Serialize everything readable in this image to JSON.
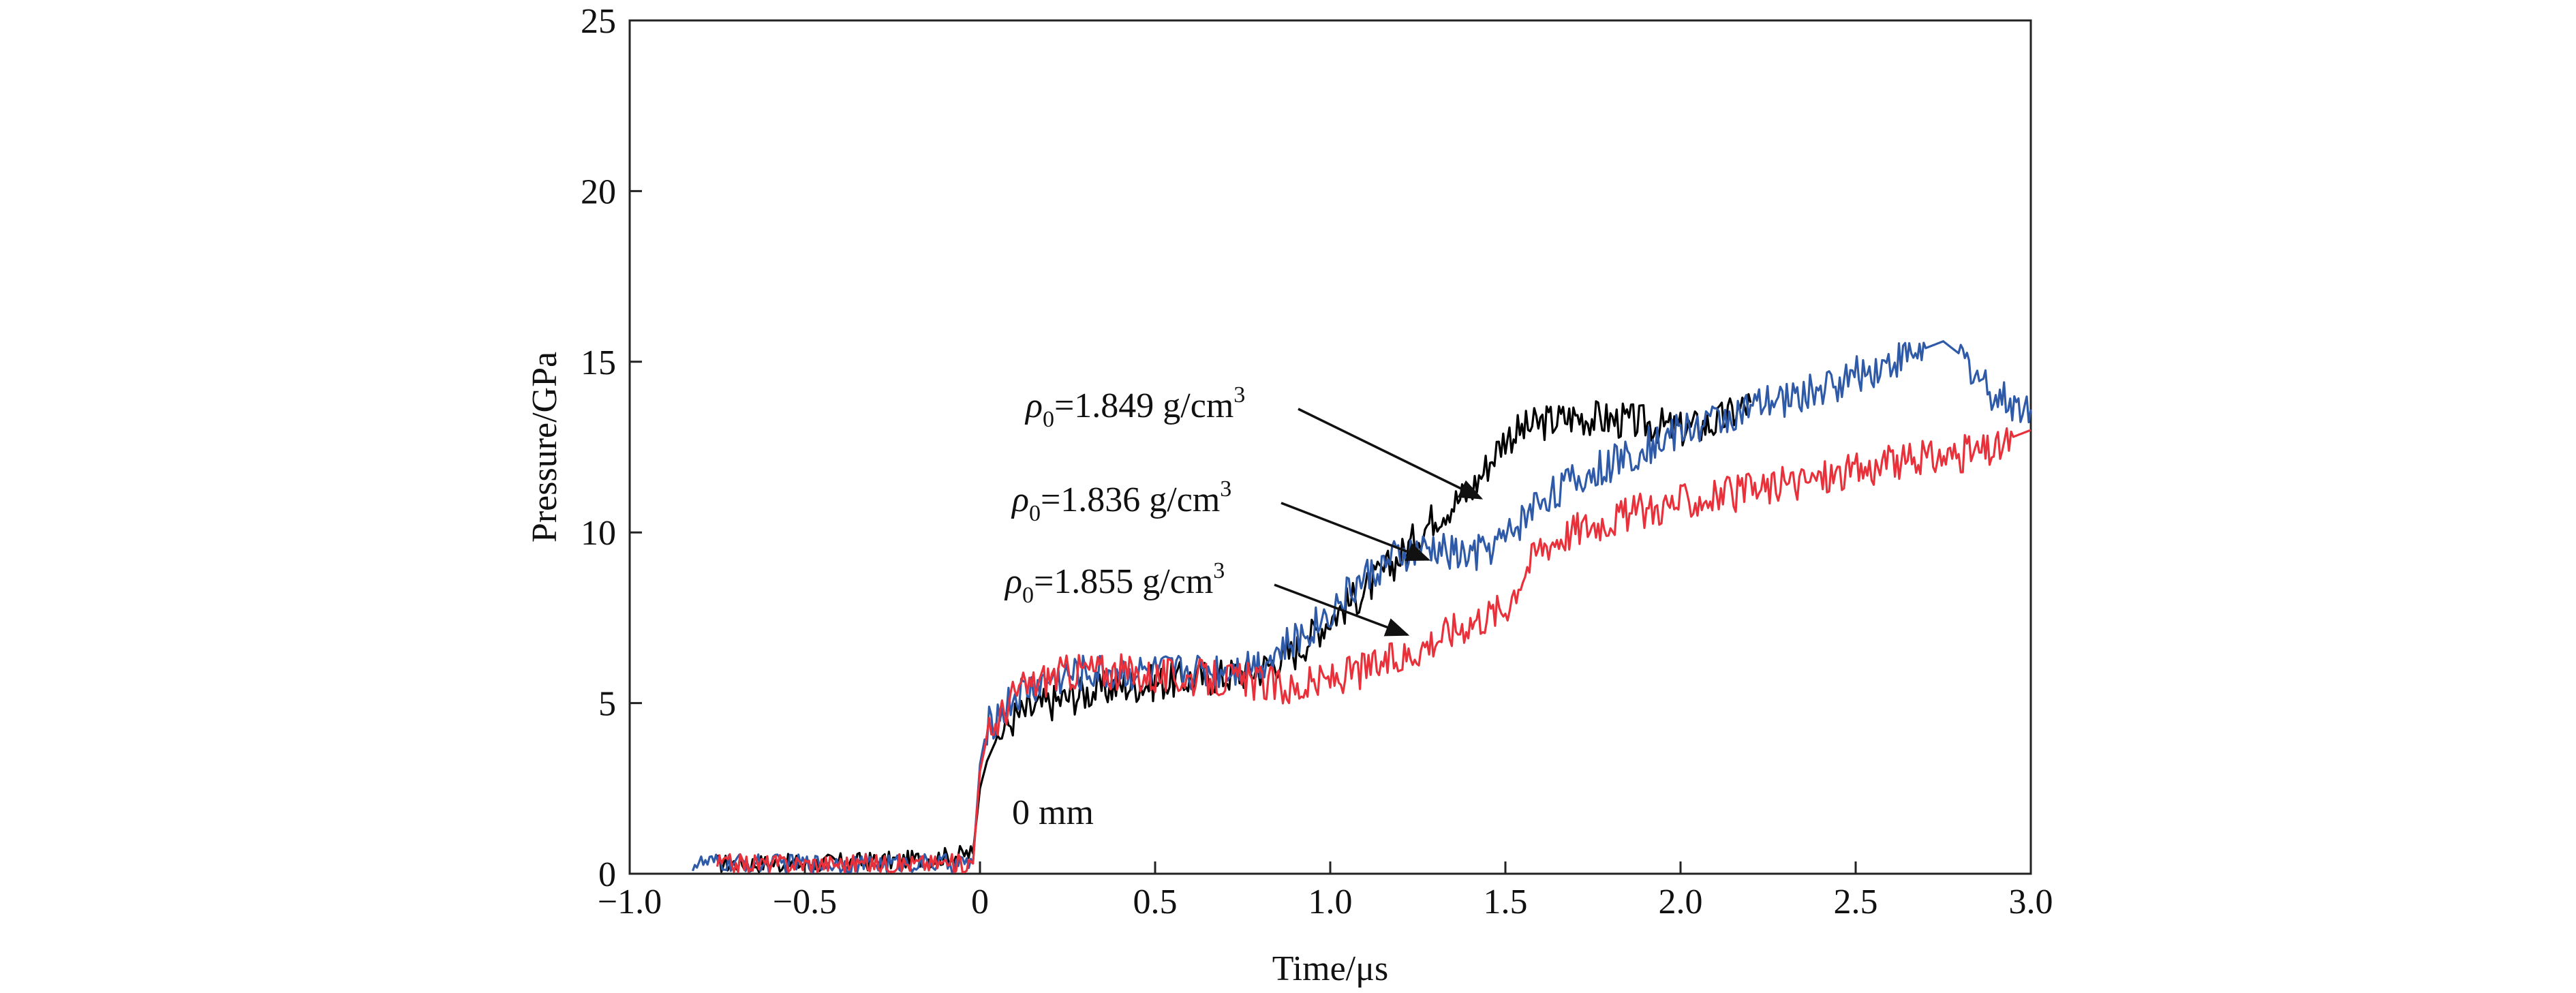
{
  "chart_data": {
    "type": "line",
    "title": "",
    "xlabel": "Time/μs",
    "ylabel": "Pressure/GPa",
    "xlim": [
      -1.0,
      3.0
    ],
    "ylim": [
      0,
      25
    ],
    "xticks": [
      -1.0,
      -0.5,
      0,
      0.5,
      1.0,
      1.5,
      2.0,
      2.5,
      3.0
    ],
    "xtick_labels": [
      "−1.0",
      "−0.5",
      "0",
      "0.5",
      "1.0",
      "1.5",
      "2.0",
      "2.5",
      "3.0"
    ],
    "yticks": [
      0,
      5,
      10,
      15,
      20,
      25
    ],
    "ytick_labels": [
      "0",
      "5",
      "10",
      "15",
      "20",
      "25"
    ],
    "grid": false,
    "legend": "none",
    "position_label": "0 mm",
    "series": [
      {
        "key": "rho_1849",
        "color": "#000000",
        "x": [
          -0.75,
          -0.5,
          -0.2,
          -0.1,
          -0.02,
          0.0,
          0.02,
          0.05,
          0.1,
          0.2,
          0.3,
          0.4,
          0.5,
          0.6,
          0.7,
          0.8,
          0.9,
          1.0,
          1.1,
          1.2,
          1.3,
          1.4,
          1.45,
          1.5,
          1.6,
          1.7,
          1.8,
          1.9,
          2.0,
          2.1,
          2.2
        ],
        "y": [
          0.3,
          0.3,
          0.4,
          0.5,
          0.6,
          2.5,
          3.3,
          4.0,
          4.6,
          5.0,
          5.3,
          5.5,
          5.6,
          5.7,
          5.8,
          6.0,
          6.5,
          7.5,
          8.3,
          9.3,
          10.5,
          11.2,
          12.0,
          12.8,
          13.2,
          13.4,
          13.3,
          13.2,
          13.0,
          13.2,
          13.8
        ]
      },
      {
        "key": "rho_1836",
        "color": "#2f5aa8",
        "x": [
          -0.82,
          -0.5,
          -0.2,
          -0.02,
          0.0,
          0.02,
          0.1,
          0.2,
          0.3,
          0.5,
          0.7,
          0.8,
          0.9,
          1.0,
          1.1,
          1.2,
          1.3,
          1.4,
          1.5,
          1.6,
          1.8,
          2.0,
          2.2,
          2.4,
          2.6,
          2.7,
          2.75,
          2.8,
          2.9,
          3.0
        ],
        "y": [
          0.3,
          0.3,
          0.3,
          0.3,
          3.2,
          4.3,
          5.2,
          5.7,
          5.9,
          5.9,
          6.0,
          6.2,
          6.8,
          7.7,
          8.7,
          9.3,
          9.5,
          9.3,
          9.8,
          11.0,
          12.0,
          13.0,
          13.6,
          14.2,
          15.0,
          15.4,
          15.6,
          15.2,
          14.0,
          13.6
        ]
      },
      {
        "key": "rho_1855",
        "color": "#e8313a",
        "x": [
          -0.75,
          -0.5,
          -0.2,
          -0.02,
          0.0,
          0.02,
          0.1,
          0.2,
          0.3,
          0.5,
          0.7,
          0.8,
          0.9,
          1.0,
          1.2,
          1.3,
          1.4,
          1.5,
          1.55,
          1.6,
          1.7,
          1.8,
          2.0,
          2.2,
          2.4,
          2.6,
          2.8,
          2.9,
          2.95,
          3.0
        ],
        "y": [
          0.3,
          0.3,
          0.3,
          0.3,
          3.0,
          4.0,
          5.3,
          5.8,
          6.0,
          5.8,
          5.7,
          5.6,
          5.4,
          5.7,
          6.3,
          6.9,
          7.4,
          7.8,
          8.8,
          9.6,
          10.1,
          10.4,
          10.9,
          11.2,
          11.6,
          12.0,
          12.3,
          12.4,
          12.8,
          13.0
        ]
      }
    ],
    "annotations": [
      {
        "symbol": "ρ",
        "sub": "0",
        "text": "=1.849 g/cm",
        "sup": "3",
        "target_x": 1.43,
        "target_y": 11.0
      },
      {
        "symbol": "ρ",
        "sub": "0",
        "text": "=1.836 g/cm",
        "sup": "3",
        "target_x": 1.28,
        "target_y": 9.2
      },
      {
        "symbol": "ρ",
        "sub": "0",
        "text": "=1.855 g/cm",
        "sup": "3",
        "target_x": 1.22,
        "target_y": 7.0
      }
    ]
  }
}
